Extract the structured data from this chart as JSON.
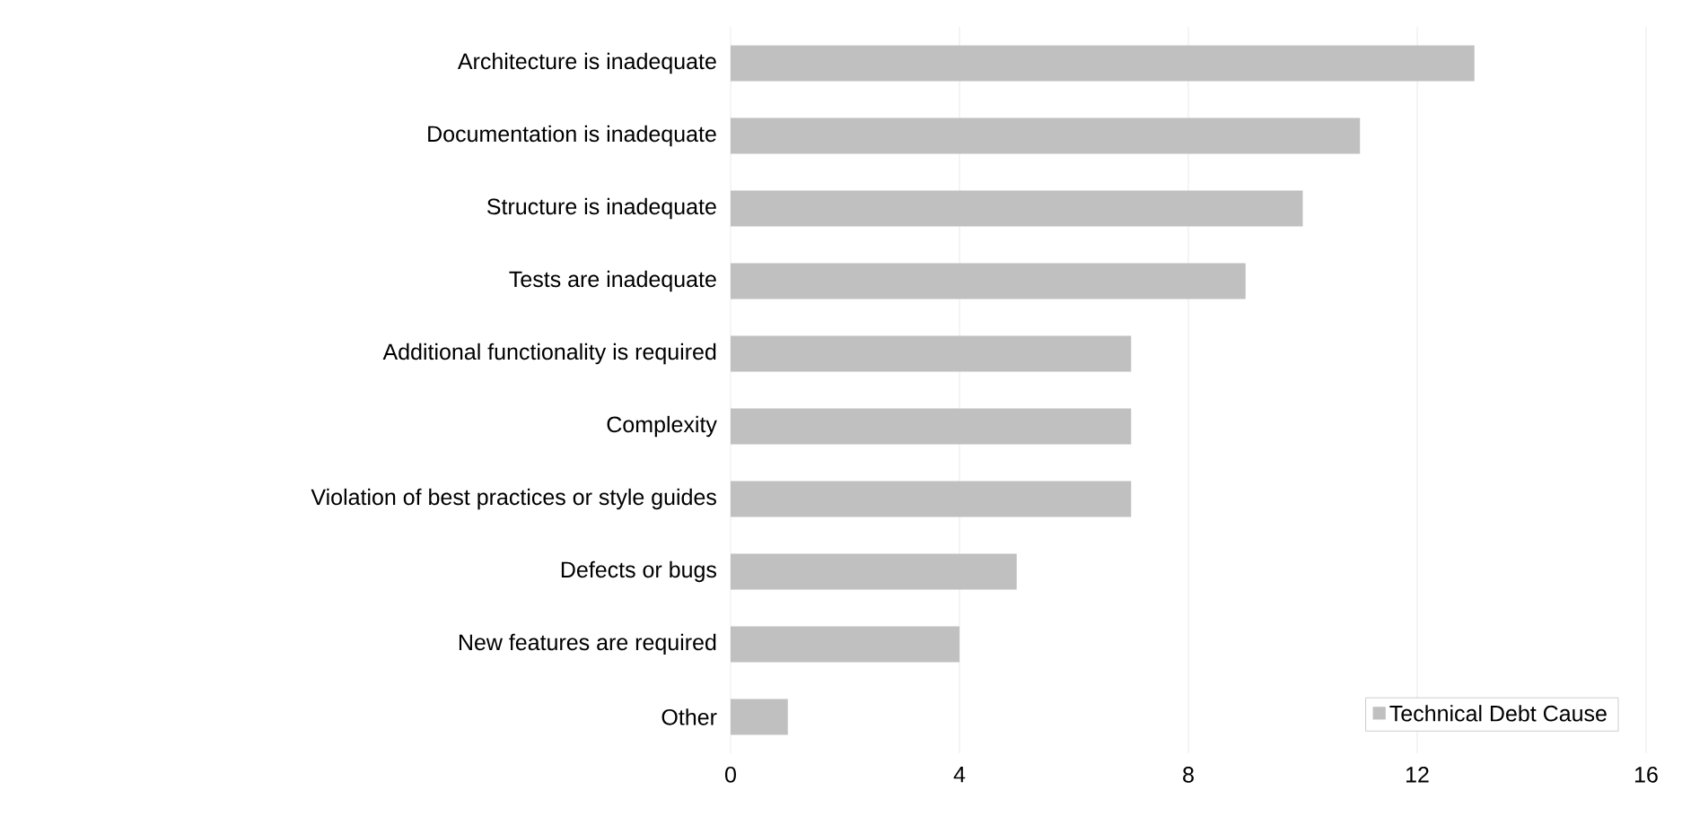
{
  "chart_data": {
    "type": "bar",
    "orientation": "horizontal",
    "categories": [
      "Architecture is inadequate",
      "Documentation is inadequate",
      "Structure is inadequate",
      "Tests are inadequate",
      "Additional functionality is required",
      "Complexity",
      "Violation of best practices or style guides",
      "Defects or bugs",
      "New features are required",
      "Other"
    ],
    "series": [
      {
        "name": "Technical Debt Cause",
        "color": "#c0c0c0",
        "values": [
          13,
          11,
          10,
          9,
          7,
          7,
          7,
          5,
          4,
          1
        ]
      }
    ],
    "xlim": [
      0,
      16
    ],
    "xticks": [
      0,
      4,
      8,
      12,
      16
    ],
    "grid": "x",
    "legend": "bottom right"
  }
}
